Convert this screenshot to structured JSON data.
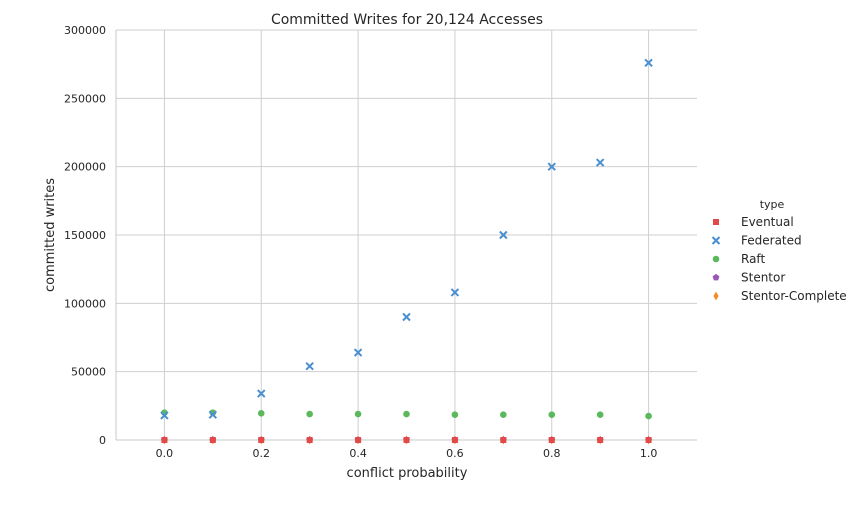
{
  "chart_data": {
    "type": "scatter",
    "title": "Committed Writes for 20,124 Accesses",
    "xlabel": "conflict probability",
    "ylabel": "committed writes",
    "xlim": [
      -0.1,
      1.1
    ],
    "ylim": [
      0,
      300000
    ],
    "x_ticks": [
      "0.0",
      "0.2",
      "0.4",
      "0.6",
      "0.8",
      "1.0"
    ],
    "x_tick_values": [
      0.0,
      0.2,
      0.4,
      0.6,
      0.8,
      1.0
    ],
    "y_ticks": [
      "0",
      "50000",
      "100000",
      "150000",
      "200000",
      "250000",
      "300000"
    ],
    "y_tick_values": [
      0,
      50000,
      100000,
      150000,
      200000,
      250000,
      300000
    ],
    "grid": true,
    "legend_title": "type",
    "legend_position": "right",
    "x": [
      0.0,
      0.1,
      0.2,
      0.3,
      0.4,
      0.5,
      0.6,
      0.7,
      0.8,
      0.9,
      1.0
    ],
    "series": [
      {
        "name": "Eventual",
        "marker": "square",
        "color": "#e24a4a",
        "values": [
          0,
          0,
          0,
          0,
          0,
          0,
          0,
          0,
          0,
          0,
          0
        ]
      },
      {
        "name": "Federated",
        "marker": "x",
        "color": "#4a8fd0",
        "values": [
          18000,
          18500,
          34000,
          54000,
          64000,
          90000,
          108000,
          150000,
          200000,
          203000,
          276000
        ]
      },
      {
        "name": "Raft",
        "marker": "circle",
        "color": "#5cb85c",
        "values": [
          20000,
          20000,
          19500,
          19000,
          19000,
          19000,
          18500,
          18500,
          18500,
          18500,
          17500
        ]
      },
      {
        "name": "Stentor",
        "marker": "pentagon",
        "color": "#9a57b5",
        "values": [
          0,
          0,
          0,
          0,
          0,
          0,
          0,
          0,
          0,
          0,
          0
        ]
      },
      {
        "name": "Stentor-Complete",
        "marker": "diamond",
        "color": "#f28e2b",
        "values": [
          0,
          0,
          0,
          0,
          0,
          0,
          0,
          0,
          0,
          0,
          0
        ]
      }
    ]
  }
}
